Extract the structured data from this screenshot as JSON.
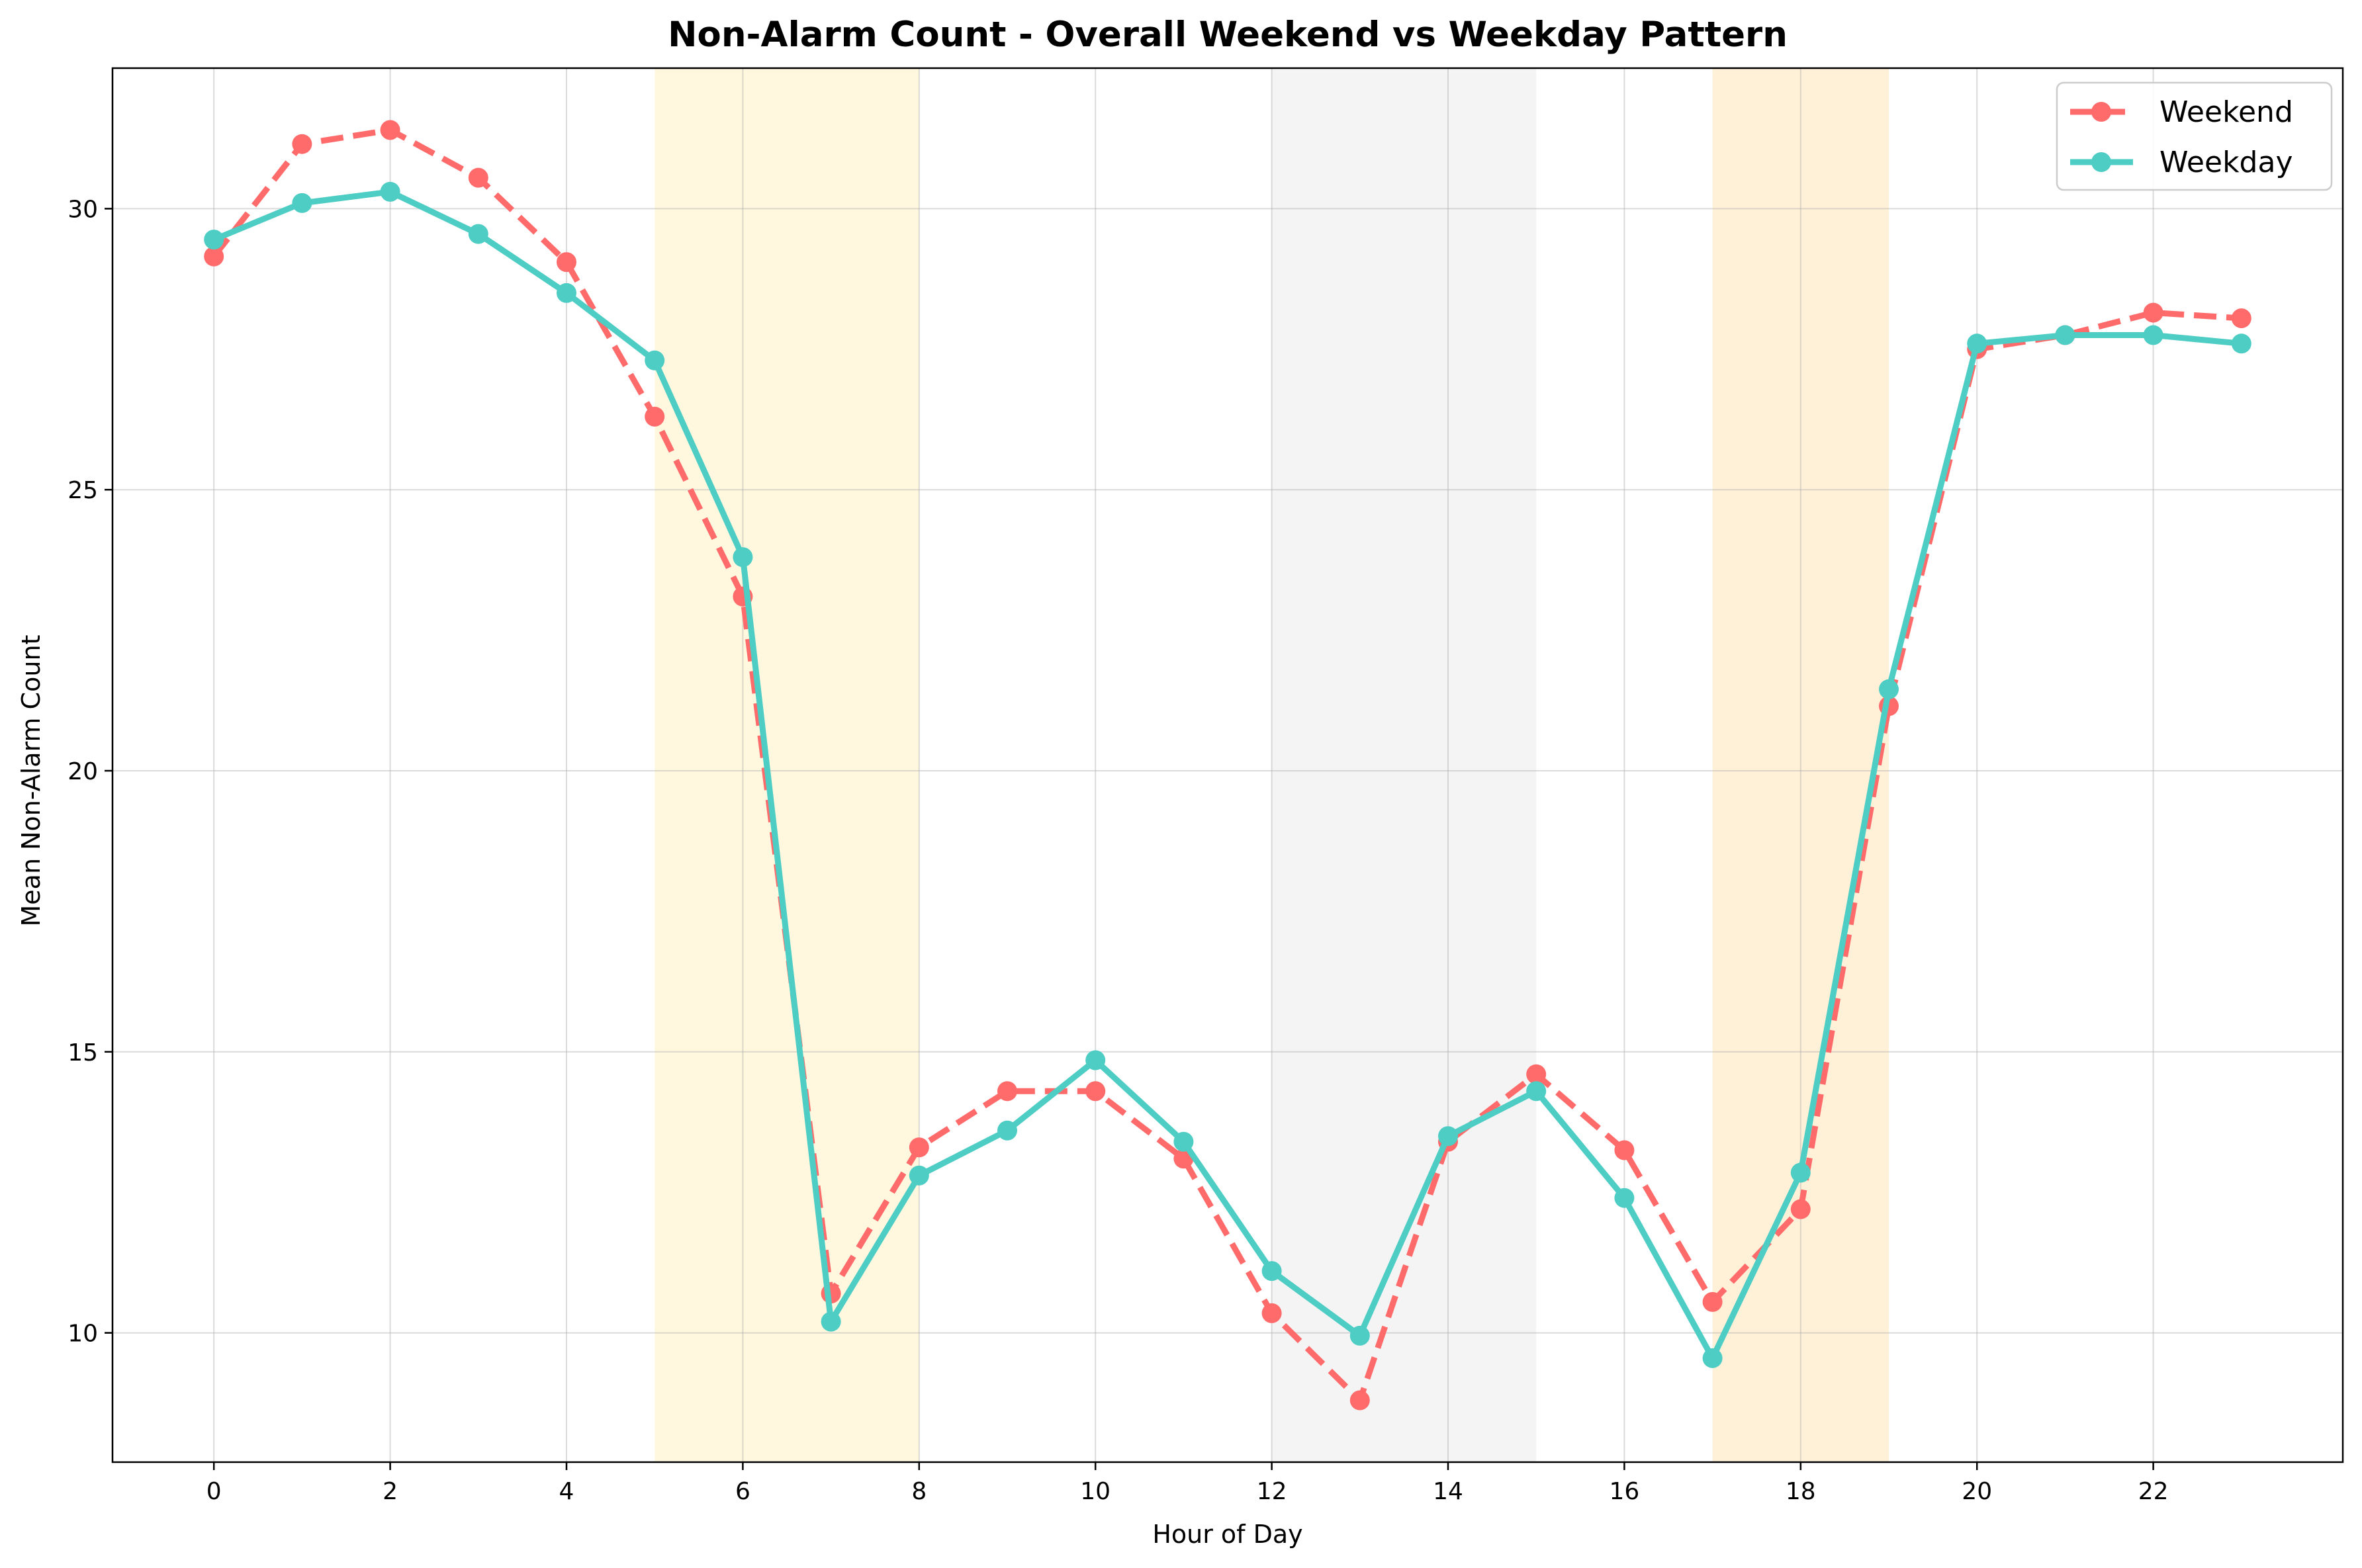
{
  "chart_data": {
    "type": "line",
    "title": "Non-Alarm Count - Overall Weekend vs Weekday Pattern",
    "xlabel": "Hour of Day",
    "ylabel": "Mean Non-Alarm Count",
    "xlim": [
      -1.15,
      24.15
    ],
    "ylim": [
      7.7,
      32.5
    ],
    "xticks": [
      0,
      2,
      4,
      6,
      8,
      10,
      12,
      14,
      16,
      18,
      20,
      22
    ],
    "yticks": [
      10,
      15,
      20,
      25,
      30
    ],
    "grid": true,
    "legend_position": "top-right",
    "x": [
      0,
      1,
      2,
      3,
      4,
      5,
      6,
      7,
      8,
      9,
      10,
      11,
      12,
      13,
      14,
      15,
      16,
      17,
      18,
      19,
      20,
      21,
      22,
      23
    ],
    "series": [
      {
        "name": "Weekend",
        "color": "#ff6b6b",
        "line_style": "dashed",
        "values": [
          29.15,
          31.15,
          31.4,
          30.55,
          29.05,
          26.3,
          23.1,
          10.7,
          13.3,
          14.3,
          14.3,
          13.1,
          10.35,
          8.8,
          13.4,
          14.6,
          13.25,
          10.55,
          12.2,
          21.15,
          27.5,
          27.75,
          28.15,
          28.05
        ]
      },
      {
        "name": "Weekday",
        "color": "#4ecdc4",
        "line_style": "solid",
        "values": [
          29.45,
          30.1,
          30.3,
          29.55,
          28.5,
          27.3,
          23.8,
          10.2,
          12.8,
          13.6,
          14.85,
          13.4,
          11.1,
          9.95,
          13.5,
          14.3,
          12.4,
          9.55,
          12.85,
          21.45,
          27.6,
          27.75,
          27.75,
          27.6
        ]
      }
    ],
    "shaded_regions": [
      {
        "from": 5,
        "to": 8,
        "color": "#fff3c4"
      },
      {
        "from": 12,
        "to": 15,
        "color": "#ebebeb"
      },
      {
        "from": 17,
        "to": 19,
        "color": "#ffe6b8"
      }
    ]
  }
}
